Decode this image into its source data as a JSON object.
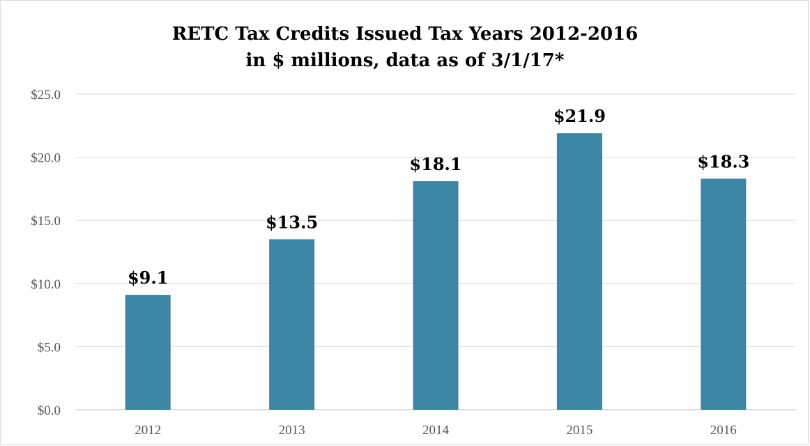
{
  "chart_data": {
    "type": "bar",
    "title": "RETC Tax Credits Issued Tax Years 2012-2016",
    "subtitle": "in $ millions, data as of 3/1/17*",
    "xlabel": "",
    "ylabel": "",
    "categories": [
      "2012",
      "2013",
      "2014",
      "2015",
      "2016"
    ],
    "values": [
      9.1,
      13.5,
      18.1,
      21.9,
      18.3
    ],
    "value_labels": [
      "$9.1",
      "$13.5",
      "$18.1",
      "$21.9",
      "$18.3"
    ],
    "ylim": [
      0,
      25
    ],
    "yticks": [
      0,
      5,
      10,
      15,
      20,
      25
    ],
    "ytick_labels": [
      "$0.0",
      "$5.0",
      "$10.0",
      "$15.0",
      "$20.0",
      "$25.0"
    ],
    "grid": true,
    "legend": "none",
    "bar_color": "#3d85a4"
  }
}
